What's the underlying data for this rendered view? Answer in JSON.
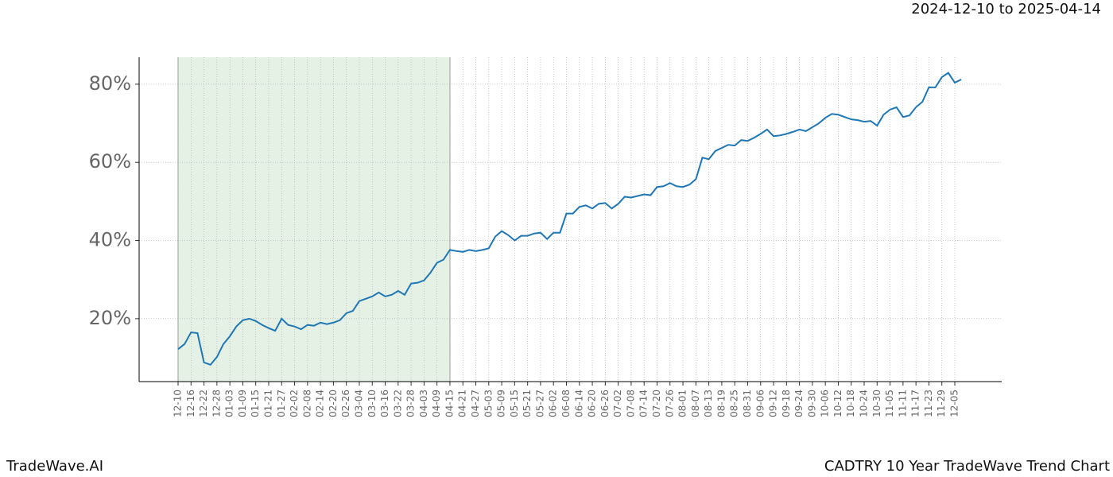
{
  "chart_data": {
    "type": "line",
    "title": "CADTRY 10 Year TradeWave Trend Chart",
    "subtitle": "2024-12-10 to 2025-04-14",
    "brand": "TradeWave.AI",
    "categories": [
      "12-10",
      null,
      "12-16",
      null,
      "12-22",
      null,
      "12-28",
      null,
      "01-03",
      null,
      "01-09",
      null,
      "01-15",
      null,
      "01-21",
      null,
      "01-27",
      null,
      "02-02",
      null,
      "02-08",
      null,
      "02-14",
      null,
      "02-20",
      null,
      "02-26",
      null,
      "03-04",
      null,
      "03-10",
      null,
      "03-16",
      null,
      "03-22",
      null,
      "03-28",
      null,
      "04-03",
      null,
      "04-09",
      null,
      "04-15",
      null,
      "04-21",
      null,
      "04-27",
      null,
      "05-03",
      null,
      "05-09",
      null,
      "05-15",
      null,
      "05-21",
      null,
      "05-27",
      null,
      "06-02",
      null,
      "06-08",
      null,
      "06-14",
      null,
      "06-20",
      null,
      "06-26",
      null,
      "07-02",
      null,
      "07-08",
      null,
      "07-14",
      null,
      "07-20",
      null,
      "07-26",
      null,
      "08-01",
      null,
      "08-07",
      null,
      "08-13",
      null,
      "08-19",
      null,
      "08-25",
      null,
      "08-31",
      null,
      "09-06",
      null,
      "09-12",
      null,
      "09-18",
      null,
      "09-24",
      null,
      "09-30",
      null,
      "10-06",
      null,
      "10-12",
      null,
      "10-18",
      null,
      "10-24",
      null,
      "10-30",
      null,
      "11-05",
      null,
      "11-11",
      null,
      "11-17",
      null,
      "11-23",
      null,
      "11-29",
      null,
      "12-05",
      null
    ],
    "series": [
      {
        "color": "#1f77b4",
        "values": [
          12.2,
          13.5,
          16.5,
          16.3,
          8.8,
          8.2,
          10.2,
          13.5,
          15.5,
          18,
          19.6,
          20,
          19.4,
          18.4,
          17.6,
          16.9,
          20,
          18.4,
          18,
          17.3,
          18.4,
          18.2,
          19,
          18.6,
          19,
          19.6,
          21.4,
          22,
          24.5,
          25.1,
          25.7,
          26.7,
          25.7,
          26.1,
          27.1,
          26.1,
          29,
          29.2,
          29.8,
          31.8,
          34.3,
          35.1,
          37.6,
          37.3,
          37.1,
          37.6,
          37.3,
          37.6,
          38,
          41,
          42.4,
          41.4,
          40,
          41.2,
          41.2,
          41.8,
          42,
          40.4,
          42,
          42,
          46.9,
          46.9,
          48.6,
          49,
          48.2,
          49.4,
          49.6,
          48.2,
          49.4,
          51.2,
          51,
          51.4,
          51.8,
          51.6,
          53.7,
          53.9,
          54.7,
          53.9,
          53.7,
          54.3,
          55.7,
          61.2,
          60.8,
          62.9,
          63.7,
          64.5,
          64.3,
          65.7,
          65.5,
          66.3,
          67.3,
          68.4,
          66.7,
          66.9,
          67.3,
          67.8,
          68.4,
          68,
          69,
          70,
          71.4,
          72.4,
          72.2,
          71.6,
          71,
          70.8,
          70.4,
          70.6,
          69.4,
          72.2,
          73.5,
          74.1,
          71.6,
          72,
          74.1,
          75.5,
          79.2,
          79.2,
          81.8,
          82.9,
          80.4,
          81.2
        ]
      }
    ],
    "ylim": [
      3.9,
      86.9
    ],
    "yticks": [
      {
        "value": 20,
        "label": "20%"
      },
      {
        "value": 40,
        "label": "40%"
      },
      {
        "value": 60,
        "label": "60%"
      },
      {
        "value": 80,
        "label": "80%"
      }
    ],
    "grid": true,
    "shaded_range": [
      "12-10",
      "04-15"
    ],
    "shade_color": "#e5f1e5"
  }
}
